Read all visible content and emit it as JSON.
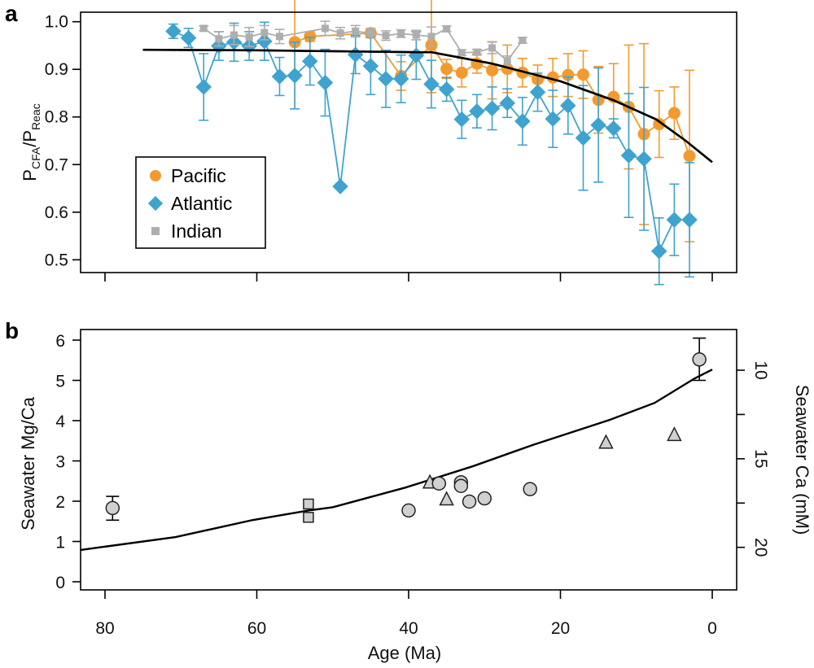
{
  "chart_data": [
    {
      "panel_label": "a",
      "type": "line",
      "ylabel_parts": [
        "P",
        "CFA",
        "/P",
        "Reac"
      ],
      "xlabel": "",
      "xlim": [
        83,
        -3
      ],
      "ylim": [
        0.48,
        1.03
      ],
      "xticks": [
        80,
        60,
        40,
        20,
        0
      ],
      "xtick_labels_shown": false,
      "yticks": [
        "0.5",
        "0.6",
        "0.7",
        "0.8",
        "0.9",
        "1.0"
      ],
      "grid": false,
      "legend_position": "bottom-left",
      "series": [
        {
          "name": "Pacific",
          "color": "#F39A2E",
          "marker": "circle",
          "x": [
            55,
            53,
            45,
            41,
            37,
            35,
            33,
            31,
            29,
            27,
            25,
            23,
            21,
            19,
            17,
            15,
            13,
            11,
            9,
            7,
            5,
            3
          ],
          "y": [
            0.957,
            0.969,
            0.976,
            0.886,
            0.951,
            0.901,
            0.893,
            0.912,
            0.898,
            0.901,
            0.893,
            0.879,
            0.883,
            0.888,
            0.889,
            0.836,
            0.842,
            0.821,
            0.764,
            0.785,
            0.808,
            0.718
          ],
          "err": [
            0.14,
            0.01,
            0.01,
            0.03,
            0.1,
            0.02,
            0.03,
            0.02,
            0.06,
            0.05,
            0.03,
            0.03,
            0.04,
            0.045,
            0.05,
            0.07,
            0.07,
            0.13,
            0.19,
            0.07,
            0.055,
            0.18
          ]
        },
        {
          "name": "Atlantic",
          "color": "#3FA3CF",
          "marker": "diamond",
          "x": [
            71,
            69,
            67,
            65,
            63,
            61,
            59,
            57,
            55,
            53,
            51,
            49,
            47,
            45,
            43,
            41,
            39,
            37,
            35,
            33,
            31,
            29,
            27,
            25,
            23,
            21,
            19,
            17,
            15,
            13,
            11,
            9,
            7,
            5,
            3
          ],
          "y": [
            0.98,
            0.966,
            0.863,
            0.949,
            0.957,
            0.949,
            0.959,
            0.885,
            0.887,
            0.917,
            0.872,
            0.654,
            0.931,
            0.907,
            0.88,
            0.88,
            0.929,
            0.869,
            0.858,
            0.795,
            0.812,
            0.818,
            0.829,
            0.791,
            0.852,
            0.796,
            0.824,
            0.756,
            0.783,
            0.776,
            0.719,
            0.712,
            0.518,
            0.584,
            0.584
          ],
          "err": [
            0.015,
            0.02,
            0.07,
            0.03,
            0.04,
            0.03,
            0.04,
            0.04,
            0.07,
            0.05,
            0.07,
            0,
            0.04,
            0.06,
            0.06,
            0.05,
            0.05,
            0.05,
            0.025,
            0.04,
            0.035,
            0.045,
            0.03,
            0.05,
            0.04,
            0.06,
            0.06,
            0.11,
            0.12,
            0.02,
            0.13,
            0.15,
            0.07,
            0.075,
            0.12
          ]
        },
        {
          "name": "Indian",
          "color": "#AEAEAE",
          "marker": "square",
          "x": [
            67,
            65,
            63,
            61,
            59,
            57,
            51,
            49,
            47,
            45,
            43,
            41,
            39,
            37,
            35,
            33,
            31,
            29,
            27,
            25
          ],
          "y": [
            0.986,
            0.964,
            0.972,
            0.968,
            0.977,
            0.969,
            0.986,
            0.976,
            0.98,
            0.976,
            0.971,
            0.975,
            0.972,
            0.969,
            0.985,
            0.935,
            0.936,
            0.945,
            0.918,
            0.961
          ],
          "err": [
            0.005,
            0.015,
            0.02,
            0.02,
            0.015,
            0.015,
            0.015,
            0.012,
            0.012,
            0.01,
            0.01,
            0.008,
            0.01,
            0.02,
            0.006,
            0.006,
            0.006,
            0.012,
            0.01,
            0.006
          ]
        },
        {
          "color": "#000000",
          "style": "solid-curve",
          "x": [
            75,
            60,
            50,
            39,
            37,
            29,
            20,
            13,
            7.4,
            3.5,
            0
          ],
          "y": [
            0.941,
            0.94,
            0.938,
            0.936,
            0.936,
            0.912,
            0.875,
            0.835,
            0.795,
            0.75,
            0.705
          ]
        }
      ]
    },
    {
      "panel_label": "b",
      "type": "scatter",
      "xlabel": "Age (Ma)",
      "ylabel": "Seawater Mg/Ca",
      "ylabel_right": "Seawater Ca (mM)",
      "xlim": [
        83,
        -3
      ],
      "ylim": [
        -0.2,
        6.2
      ],
      "xticks": [
        "80",
        "60",
        "40",
        "20",
        "0"
      ],
      "yticks": [
        "0",
        "1",
        "2",
        "3",
        "4",
        "5",
        "6"
      ],
      "yticks_right": {
        "values": [
          10,
          12.5,
          15,
          17.5,
          20
        ],
        "labels": [
          "10",
          "",
          "15",
          "",
          "20"
        ]
      },
      "grid": false,
      "marker_fill": "#D0D0D0",
      "points": [
        {
          "marker": "circle",
          "x": 79,
          "y": 1.83,
          "err_low": 1.53,
          "err_high": 2.12
        },
        {
          "marker": "square",
          "x": 53.2,
          "y": 1.93
        },
        {
          "marker": "square",
          "x": 53.2,
          "y": 1.6
        },
        {
          "marker": "circle",
          "x": 40,
          "y": 1.77
        },
        {
          "marker": "triangle",
          "x": 37.2,
          "y": 2.45
        },
        {
          "marker": "circle",
          "x": 36,
          "y": 2.44
        },
        {
          "marker": "triangle",
          "x": 35,
          "y": 2.03
        },
        {
          "marker": "circle",
          "x": 33.1,
          "y": 2.47
        },
        {
          "marker": "circle",
          "x": 33.1,
          "y": 2.38
        },
        {
          "marker": "circle",
          "x": 32,
          "y": 1.99
        },
        {
          "marker": "circle",
          "x": 30,
          "y": 2.07
        },
        {
          "marker": "circle",
          "x": 24,
          "y": 2.3
        },
        {
          "marker": "triangle",
          "x": 14,
          "y": 3.44
        },
        {
          "marker": "triangle",
          "x": 5,
          "y": 3.63
        },
        {
          "marker": "circle",
          "x": 1.7,
          "y": 5.52,
          "err_low": 5.0,
          "err_high": 6.05
        }
      ],
      "curve": {
        "x": [
          83.2,
          70.7,
          60.6,
          53.2,
          50,
          40.4,
          31.5,
          23.6,
          13.5,
          7.6,
          2.3,
          0
        ],
        "y": [
          0.79,
          1.11,
          1.53,
          1.77,
          1.85,
          2.34,
          2.87,
          3.4,
          4.02,
          4.44,
          5.05,
          5.27
        ]
      }
    }
  ]
}
